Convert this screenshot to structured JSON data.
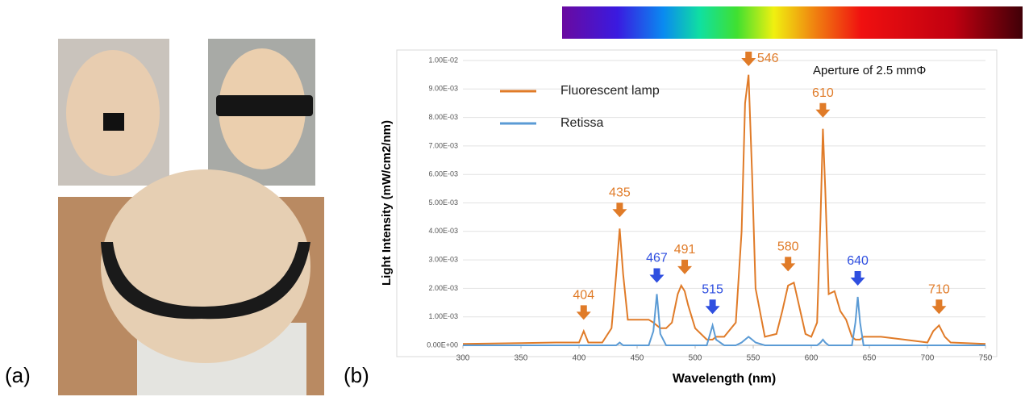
{
  "panel_labels": [
    "(a)",
    "(b)"
  ],
  "chart_data": {
    "type": "line",
    "x_label": "Wavelength (nm)",
    "y_label": "Light Intensity (mW/cm2/nm)",
    "annotation_text": "Aperture of 2.5 mmΦ",
    "xlim": [
      300,
      750
    ],
    "xticks": [
      300,
      350,
      400,
      450,
      500,
      550,
      600,
      650,
      700,
      750
    ],
    "ylim": [
      0,
      0.01
    ],
    "yticks": [
      {
        "value": 0,
        "label": "0.00E+00"
      },
      {
        "value": 0.001,
        "label": "1.00E-03"
      },
      {
        "value": 0.002,
        "label": "2.00E-03"
      },
      {
        "value": 0.003,
        "label": "3.00E-03"
      },
      {
        "value": 0.004,
        "label": "4.00E-03"
      },
      {
        "value": 0.005,
        "label": "5.00E-03"
      },
      {
        "value": 0.006,
        "label": "6.00E-03"
      },
      {
        "value": 0.007,
        "label": "7.00E-03"
      },
      {
        "value": 0.008,
        "label": "8.00E-03"
      },
      {
        "value": 0.009,
        "label": "9.00E-03"
      },
      {
        "value": 0.01,
        "label": "1.00E-02"
      }
    ],
    "grid": true,
    "legend": "upper left",
    "x": [
      300,
      350,
      380,
      400,
      404,
      408,
      420,
      428,
      432,
      435,
      438,
      442,
      450,
      460,
      464,
      467,
      470,
      475,
      480,
      485,
      488,
      491,
      494,
      500,
      510,
      515,
      518,
      525,
      535,
      540,
      543,
      546,
      549,
      552,
      560,
      570,
      575,
      580,
      585,
      590,
      595,
      600,
      605,
      608,
      610,
      612,
      615,
      620,
      625,
      630,
      635,
      638,
      640,
      642,
      645,
      660,
      680,
      700,
      705,
      710,
      715,
      720,
      750
    ],
    "series": [
      {
        "name": "Fluorescent lamp",
        "color": "#e07b28",
        "values": [
          5e-05,
          8e-05,
          0.0001,
          0.0001,
          0.0005,
          0.0001,
          0.0001,
          0.0006,
          0.0025,
          0.0041,
          0.0025,
          0.0009,
          0.0009,
          0.0009,
          0.0008,
          0.0007,
          0.0006,
          0.0006,
          0.0008,
          0.0018,
          0.0021,
          0.0019,
          0.0014,
          0.0006,
          0.0002,
          0.0002,
          0.0003,
          0.0003,
          0.0008,
          0.004,
          0.0085,
          0.0095,
          0.006,
          0.002,
          0.0003,
          0.0004,
          0.0012,
          0.0021,
          0.0022,
          0.0013,
          0.0004,
          0.0003,
          0.0008,
          0.0045,
          0.0076,
          0.0055,
          0.0018,
          0.0019,
          0.0012,
          0.0009,
          0.0003,
          0.0002,
          0.0002,
          0.0002,
          0.0003,
          0.0003,
          0.0002,
          0.0001,
          0.0005,
          0.0007,
          0.0003,
          0.0001,
          5e-05
        ]
      },
      {
        "name": "Retissa",
        "color": "#5b9bd5",
        "values": [
          0,
          0,
          0,
          0,
          0,
          0,
          0,
          0,
          0,
          0.0001,
          0,
          0,
          0,
          0,
          0.0005,
          0.0018,
          0.0004,
          0,
          0,
          0,
          0,
          0,
          0,
          0,
          0,
          0.0007,
          0.0002,
          0,
          0,
          0.0001,
          0.0002,
          0.0003,
          0.0002,
          0.0001,
          0,
          0,
          0,
          0,
          0,
          0,
          0,
          0,
          0,
          0.0001,
          0.0002,
          0.0001,
          0,
          0,
          0,
          0,
          0,
          0.0008,
          0.0017,
          0.0008,
          0,
          0,
          0,
          0,
          0,
          0,
          0,
          0,
          0
        ]
      }
    ],
    "annotations": [
      {
        "text": 404,
        "color": "#e07b28"
      },
      {
        "text": 435,
        "color": "#e07b28"
      },
      {
        "text": 467,
        "color": "#2f4fe0"
      },
      {
        "text": 491,
        "color": "#e07b28"
      },
      {
        "text": 515,
        "color": "#2f4fe0"
      },
      {
        "text": 546,
        "color": "#e07b28"
      },
      {
        "text": 580,
        "color": "#e07b28"
      },
      {
        "text": 610,
        "color": "#e07b28"
      },
      {
        "text": 640,
        "color": "#2f4fe0"
      },
      {
        "text": 710,
        "color": "#e07b28"
      }
    ]
  }
}
